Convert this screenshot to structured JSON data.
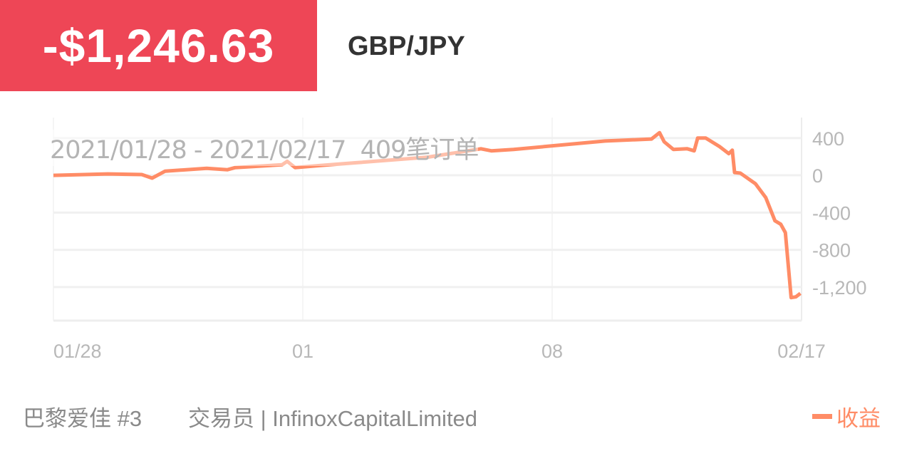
{
  "header": {
    "pnl": "-$1,246.63",
    "symbol": "GBP/JPY",
    "pnl_color": "#EE4656"
  },
  "overlay": {
    "range_text": "2021/01/28 - 2021/02/17  409笔订单"
  },
  "footer": {
    "account": "巴黎爱佳 #3",
    "trader": "交易员 | InfinoxCapitalLimited"
  },
  "chart_data": {
    "type": "line",
    "title": "",
    "xlabel": "",
    "ylabel": "",
    "x_ticks": [
      {
        "date": "2021-01-28T00:00",
        "label": "01/28"
      },
      {
        "date": "2021-02-01T00:00",
        "label": "01"
      },
      {
        "date": "2021-02-08T00:00",
        "label": "08"
      },
      {
        "date": "2021-02-17T00:00",
        "label": "02/17"
      }
    ],
    "y_ticks": [
      400,
      0,
      -400,
      -800,
      -1200
    ],
    "y_tick_labels": [
      "400",
      "0",
      "-400",
      "-800",
      "-1,200"
    ],
    "ylim": [
      -1560,
      620
    ],
    "y_axis_side": "right",
    "grid": true,
    "legend_placement": "bottom-right",
    "series": [
      {
        "name": "收益",
        "color": "#FF8C66",
        "points": [
          [
            "2021-01-28T00:00",
            0
          ],
          [
            "2021-01-28T21:00",
            15
          ],
          [
            "2021-01-29T10:00",
            8
          ],
          [
            "2021-01-29T14:00",
            -30
          ],
          [
            "2021-01-29T19:00",
            45
          ],
          [
            "2021-01-30T11:00",
            75
          ],
          [
            "2021-01-30T19:00",
            60
          ],
          [
            "2021-01-30T22:00",
            83
          ],
          [
            "2021-01-31T16:00",
            113
          ],
          [
            "2021-01-31T18:00",
            150
          ],
          [
            "2021-01-31T21:00",
            83
          ],
          [
            "2021-02-01T12:00",
            105
          ],
          [
            "2021-02-02T12:00",
            135
          ],
          [
            "2021-02-04T12:00",
            195
          ],
          [
            "2021-02-06T00:00",
            285
          ],
          [
            "2021-02-06T07:00",
            263
          ],
          [
            "2021-02-06T22:00",
            278
          ],
          [
            "2021-02-09T22:00",
            368
          ],
          [
            "2021-02-11T14:00",
            390
          ],
          [
            "2021-02-11T21:00",
            458
          ],
          [
            "2021-02-12T01:00",
            360
          ],
          [
            "2021-02-12T09:00",
            278
          ],
          [
            "2021-02-12T21:00",
            285
          ],
          [
            "2021-02-13T03:00",
            263
          ],
          [
            "2021-02-13T06:00",
            400
          ],
          [
            "2021-02-13T13:00",
            400
          ],
          [
            "2021-02-14T01:00",
            308
          ],
          [
            "2021-02-14T09:00",
            233
          ],
          [
            "2021-02-14T12:00",
            270
          ],
          [
            "2021-02-14T14:00",
            30
          ],
          [
            "2021-02-14T19:00",
            23
          ],
          [
            "2021-02-15T08:00",
            -90
          ],
          [
            "2021-02-15T17:00",
            -240
          ],
          [
            "2021-02-16T01:00",
            -488
          ],
          [
            "2021-02-16T06:00",
            -525
          ],
          [
            "2021-02-16T10:00",
            -615
          ],
          [
            "2021-02-16T15:00",
            -1313
          ],
          [
            "2021-02-16T19:00",
            -1305
          ],
          [
            "2021-02-16T23:00",
            -1268
          ]
        ]
      }
    ]
  }
}
